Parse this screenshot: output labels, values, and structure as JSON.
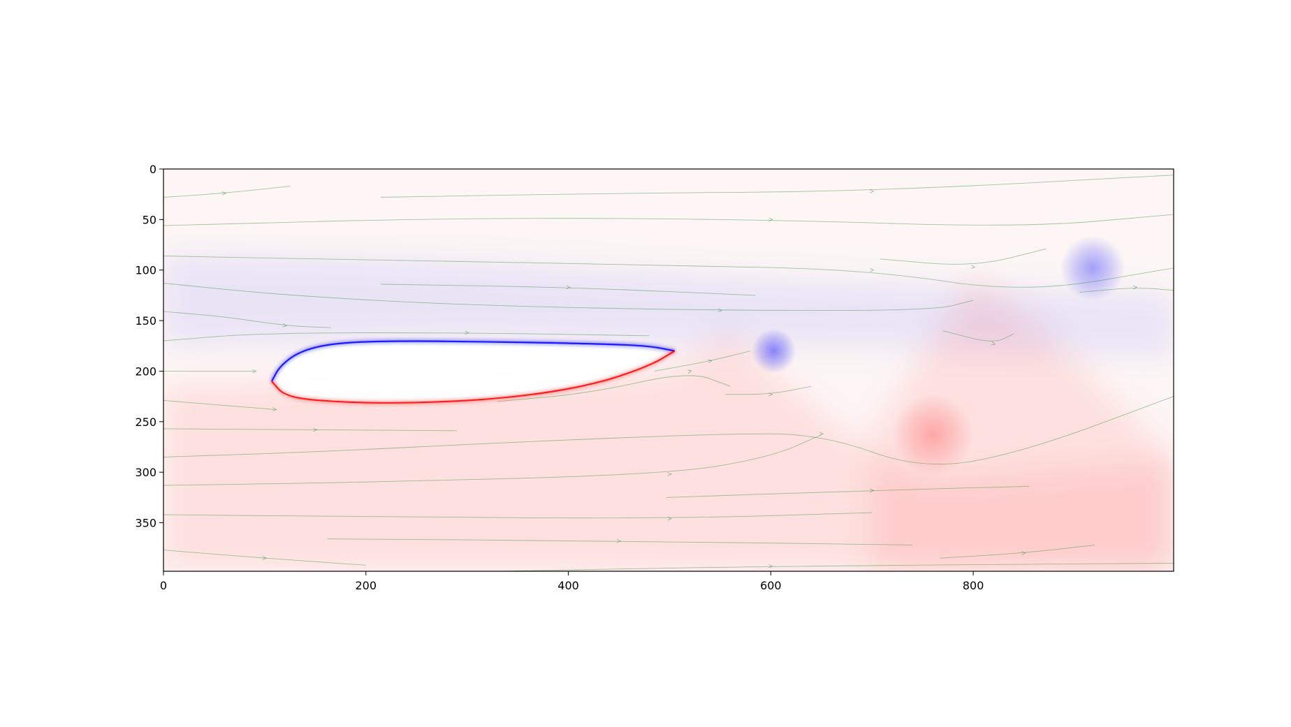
{
  "chart_data": {
    "type": "heatmap",
    "title": "",
    "xlabel": "",
    "ylabel": "",
    "xlim": [
      0,
      998
    ],
    "ylim": [
      398,
      0
    ],
    "y_inverted": true,
    "x_ticks": [
      0,
      200,
      400,
      600,
      800
    ],
    "y_ticks": [
      0,
      50,
      100,
      150,
      200,
      250,
      300,
      350
    ],
    "colormap": "bwr",
    "colormap_colors": {
      "negative": "#0000ff",
      "zero": "#ffffff",
      "positive": "#ff0000"
    },
    "background_tint": "#fdf6f5",
    "streamline_color": "#2e8b2e",
    "grid": false,
    "legend": "none",
    "features": [
      {
        "name": "airfoil",
        "kind": "body",
        "leading_edge": [
          107,
          210
        ],
        "trailing_edge": [
          505,
          180
        ],
        "upper_surface": [
          [
            107,
            210
          ],
          [
            115,
            195
          ],
          [
            135,
            180
          ],
          [
            170,
            172
          ],
          [
            230,
            170
          ],
          [
            330,
            171
          ],
          [
            430,
            173
          ],
          [
            480,
            175
          ],
          [
            505,
            180
          ]
        ],
        "lower_surface": [
          [
            505,
            180
          ],
          [
            480,
            195
          ],
          [
            420,
            215
          ],
          [
            330,
            228
          ],
          [
            230,
            232
          ],
          [
            160,
            230
          ],
          [
            120,
            225
          ],
          [
            107,
            210
          ]
        ],
        "upper_sign": "negative",
        "lower_sign": "positive"
      },
      {
        "name": "negative-shear-layer",
        "kind": "region",
        "sign": "negative",
        "strength": 0.08,
        "boundary": [
          [
            0,
            85
          ],
          [
            250,
            90
          ],
          [
            600,
            110
          ],
          [
            998,
            125
          ],
          [
            998,
            185
          ],
          [
            700,
            175
          ],
          [
            500,
            172
          ],
          [
            300,
            168
          ],
          [
            0,
            175
          ]
        ]
      },
      {
        "name": "positive-wake-region",
        "kind": "region",
        "sign": "positive",
        "strength": 0.09,
        "boundary": [
          [
            0,
            215
          ],
          [
            500,
            200
          ],
          [
            540,
            175
          ],
          [
            560,
            160
          ],
          [
            600,
            200
          ],
          [
            660,
            250
          ],
          [
            720,
            295
          ],
          [
            760,
            310
          ],
          [
            998,
            290
          ],
          [
            998,
            398
          ],
          [
            0,
            398
          ]
        ]
      },
      {
        "name": "positive-triangle-region",
        "kind": "region",
        "sign": "positive",
        "strength": 0.09,
        "boundary": [
          [
            700,
            260
          ],
          [
            760,
            170
          ],
          [
            800,
            108
          ],
          [
            860,
            150
          ],
          [
            930,
            220
          ],
          [
            998,
            285
          ],
          [
            998,
            398
          ],
          [
            700,
            398
          ]
        ]
      },
      {
        "name": "vortex-1",
        "kind": "blob",
        "sign": "negative",
        "center": [
          603,
          180
        ],
        "radius": 22,
        "strength": 0.45
      },
      {
        "name": "vortex-2",
        "kind": "blob",
        "sign": "positive",
        "center": [
          760,
          263
        ],
        "radius": 40,
        "strength": 0.25
      },
      {
        "name": "vortex-3",
        "kind": "blob",
        "sign": "negative",
        "center": [
          918,
          98
        ],
        "radius": 32,
        "strength": 0.35
      }
    ],
    "streamlines": [
      [
        [
          0,
          28
        ],
        [
          60,
          24
        ],
        [
          125,
          17
        ]
      ],
      [
        [
          0,
          56
        ],
        [
          300,
          48
        ],
        [
          600,
          50
        ],
        [
          850,
          58
        ],
        [
          998,
          45
        ]
      ],
      [
        [
          215,
          28
        ],
        [
          450,
          24
        ],
        [
          700,
          22
        ],
        [
          998,
          6
        ]
      ],
      [
        [
          0,
          86
        ],
        [
          200,
          90
        ],
        [
          500,
          95
        ],
        [
          700,
          100
        ],
        [
          850,
          123
        ],
        [
          998,
          98
        ]
      ],
      [
        [
          215,
          114
        ],
        [
          400,
          117
        ],
        [
          585,
          125
        ]
      ],
      [
        [
          0,
          113
        ],
        [
          120,
          125
        ],
        [
          300,
          135
        ],
        [
          550,
          140
        ],
        [
          760,
          140
        ],
        [
          800,
          130
        ]
      ],
      [
        [
          0,
          141
        ],
        [
          60,
          146
        ],
        [
          120,
          155
        ],
        [
          165,
          157
        ]
      ],
      [
        [
          0,
          170
        ],
        [
          100,
          162
        ],
        [
          300,
          162
        ],
        [
          480,
          165
        ]
      ],
      [
        [
          708,
          89
        ],
        [
          800,
          97
        ],
        [
          872,
          79
        ]
      ],
      [
        [
          905,
          122
        ],
        [
          960,
          117
        ],
        [
          998,
          120
        ]
      ],
      [
        [
          770,
          160
        ],
        [
          820,
          173
        ],
        [
          840,
          163
        ]
      ],
      [
        [
          0,
          200
        ],
        [
          90,
          200
        ]
      ],
      [
        [
          0,
          229
        ],
        [
          110,
          238
        ]
      ],
      [
        [
          0,
          257
        ],
        [
          150,
          258
        ],
        [
          290,
          259
        ]
      ],
      [
        [
          0,
          285
        ],
        [
          150,
          280
        ],
        [
          350,
          270
        ],
        [
          550,
          262
        ],
        [
          650,
          262
        ],
        [
          750,
          298
        ],
        [
          850,
          280
        ],
        [
          998,
          225
        ]
      ],
      [
        [
          0,
          313
        ],
        [
          200,
          310
        ],
        [
          500,
          302
        ],
        [
          600,
          285
        ],
        [
          650,
          263
        ]
      ],
      [
        [
          485,
          200
        ],
        [
          540,
          190
        ],
        [
          580,
          180
        ]
      ],
      [
        [
          555,
          223
        ],
        [
          600,
          223
        ],
        [
          640,
          215
        ]
      ],
      [
        [
          330,
          230
        ],
        [
          420,
          222
        ],
        [
          520,
          200
        ],
        [
          560,
          215
        ]
      ],
      [
        [
          0,
          342
        ],
        [
          200,
          344
        ],
        [
          500,
          346
        ],
        [
          700,
          340
        ]
      ],
      [
        [
          0,
          377
        ],
        [
          100,
          385
        ],
        [
          200,
          392
        ]
      ],
      [
        [
          162,
          366
        ],
        [
          450,
          368
        ],
        [
          740,
          372
        ]
      ],
      [
        [
          497,
          325
        ],
        [
          700,
          318
        ],
        [
          855,
          314
        ]
      ],
      [
        [
          767,
          385
        ],
        [
          850,
          380
        ],
        [
          920,
          372
        ]
      ],
      [
        [
          330,
          398
        ],
        [
          600,
          393
        ],
        [
          998,
          390
        ]
      ]
    ]
  }
}
